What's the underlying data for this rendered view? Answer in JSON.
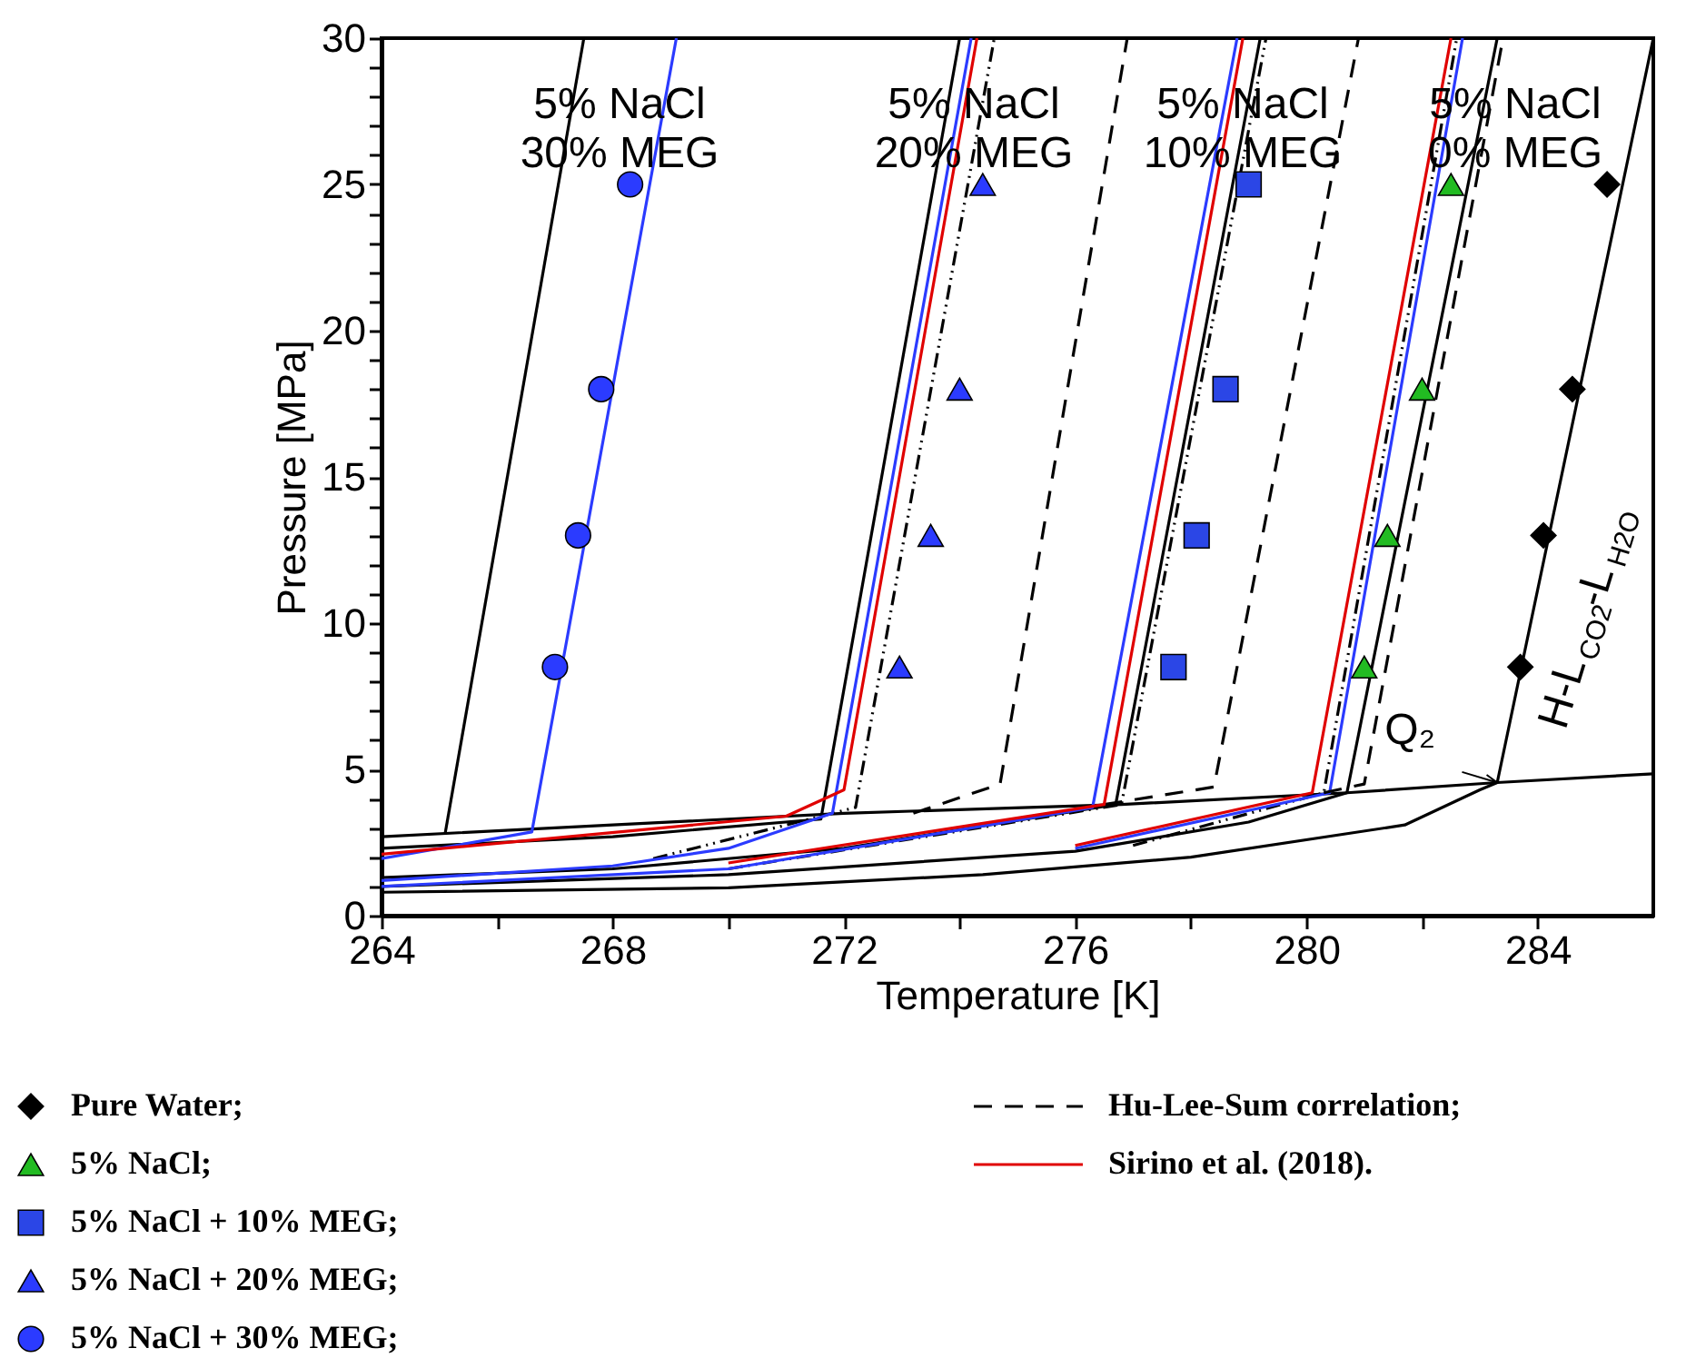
{
  "chart_data": {
    "type": "line",
    "xlabel": "Temperature [K]",
    "ylabel": "Pressure [MPa]",
    "xlim": [
      264,
      286
    ],
    "xticks": [
      264,
      {
        "value": 266,
        "label": null
      },
      268,
      {
        "value": 270,
        "label": null
      },
      272,
      {
        "value": 274,
        "label": null
      },
      276,
      {
        "value": 278,
        "label": null
      },
      280,
      {
        "value": 282,
        "label": null
      },
      284
    ],
    "ylim": [
      0,
      30
    ],
    "yticks": [
      0,
      {
        "value": 1,
        "label": null
      },
      {
        "value": 2,
        "label": null
      },
      {
        "value": 3,
        "label": null
      },
      {
        "value": 4,
        "label": null
      },
      5,
      {
        "value": 6,
        "label": null
      },
      {
        "value": 7,
        "label": null
      },
      {
        "value": 8,
        "label": null
      },
      {
        "value": 9,
        "label": null
      },
      10,
      {
        "value": 11,
        "label": null
      },
      {
        "value": 12,
        "label": null
      },
      {
        "value": 13,
        "label": null
      },
      {
        "value": 14,
        "label": null
      },
      15,
      {
        "value": 16,
        "label": null
      },
      {
        "value": 17,
        "label": null
      },
      {
        "value": 18,
        "label": null
      },
      {
        "value": 19,
        "label": null
      },
      20,
      {
        "value": 21,
        "label": null
      },
      {
        "value": 22,
        "label": null
      },
      {
        "value": 23,
        "label": null
      },
      {
        "value": 24,
        "label": null
      },
      25,
      {
        "value": 26,
        "label": null
      },
      {
        "value": 27,
        "label": null
      },
      {
        "value": 28,
        "label": null
      },
      {
        "value": 29,
        "label": null
      },
      30
    ],
    "grid": false,
    "legend": "bottom",
    "series": [
      {
        "color": "#000000",
        "line_style": "solid",
        "x": [
          264,
          268,
          272,
          276.8,
          280.7,
          283.3,
          286
        ],
        "values": [
          2.7,
          3.1,
          3.5,
          3.8,
          4.2,
          4.55,
          4.85
        ]
      },
      {
        "color": "#000000",
        "line_style": "solid",
        "x": [
          264,
          270,
          274.4,
          278,
          281.7,
          283.0,
          283.3,
          286.0
        ],
        "values": [
          0.8,
          0.95,
          1.4,
          2.0,
          3.1,
          4.3,
          4.55,
          30
        ]
      },
      {
        "color": "#000000",
        "line_style": "solid",
        "x": [
          264,
          270,
          276,
          279,
          280.7,
          283.3
        ],
        "values": [
          1.0,
          1.4,
          2.2,
          3.2,
          4.2,
          30
        ]
      },
      {
        "color": "#000000",
        "line_style": "solid",
        "x": [
          264,
          268,
          272,
          276.7,
          279.2
        ],
        "values": [
          1.3,
          1.6,
          2.3,
          3.8,
          30
        ]
      },
      {
        "color": "#000000",
        "line_style": "solid",
        "x": [
          264,
          268,
          271.6,
          274.0
        ],
        "values": [
          2.3,
          2.7,
          3.3,
          30
        ]
      },
      {
        "color": "#000000",
        "line_style": "solid",
        "x": [
          265.1,
          267.5
        ],
        "values": [
          2.8,
          30
        ]
      },
      {
        "color": "#000000",
        "line_style": "dotted",
        "x": [
          268.7,
          272.2,
          274.6
        ],
        "values": [
          1.95,
          3.7,
          30
        ]
      },
      {
        "color": "#000000",
        "line_style": "dotted",
        "x": [
          270,
          276.8,
          279.3
        ],
        "values": [
          1.6,
          3.8,
          30
        ]
      },
      {
        "color": "#000000",
        "line_style": "dotted",
        "x": [
          277,
          280.3,
          282.6
        ],
        "values": [
          2.4,
          4.2,
          30
        ]
      },
      {
        "color": "#2b3bff",
        "line_style": "solid",
        "x": [
          264,
          266.6,
          269.1
        ],
        "values": [
          1.95,
          2.86,
          30
        ]
      },
      {
        "color": "#2b3bff",
        "line_style": "solid",
        "x": [
          264,
          268,
          270,
          271.8,
          274.2
        ],
        "values": [
          1.2,
          1.7,
          2.3,
          3.5,
          30
        ]
      },
      {
        "color": "#2b3bff",
        "line_style": "solid",
        "x": [
          264,
          270,
          276.3,
          278.8
        ],
        "values": [
          1.0,
          1.6,
          3.7,
          30
        ]
      },
      {
        "color": "#2b3bff",
        "line_style": "solid",
        "x": [
          276,
          280.4,
          282.7
        ],
        "values": [
          2.3,
          4.2,
          30
        ]
      },
      {
        "name": "Hu-Lee-Sum correlation;",
        "color": "#000000",
        "line_style": "dashed",
        "x": [
          273.2,
          274.7,
          276.9
        ],
        "values": [
          3.5,
          4.5,
          30
        ]
      },
      {
        "color": "#000000",
        "line_style": "dashed",
        "x": [
          276.5,
          278.4,
          280.9
        ],
        "values": [
          3.8,
          4.4,
          30
        ]
      },
      {
        "color": "#000000",
        "line_style": "dashed",
        "x": [
          280.3,
          281.0,
          283.4
        ],
        "values": [
          4.2,
          4.5,
          30
        ]
      },
      {
        "name": "Sirino et al. (2018).",
        "color": "#e00000",
        "line_style": "solid",
        "x": [
          264,
          271.0,
          272.0,
          274.3
        ],
        "values": [
          2.1,
          3.4,
          4.3,
          30
        ]
      },
      {
        "color": "#e00000",
        "line_style": "solid",
        "x": [
          270,
          276.5,
          278.9
        ],
        "values": [
          1.8,
          3.8,
          30
        ]
      },
      {
        "color": "#e00000",
        "line_style": "solid",
        "x": [
          276,
          280.1,
          282.5
        ],
        "values": [
          2.4,
          4.2,
          30
        ]
      },
      {
        "type": "scatter",
        "name": "Pure Water;",
        "color": "#000000",
        "marker": "diamond",
        "x": [
          285.2,
          284.6,
          284.1,
          283.7
        ],
        "values": [
          25,
          18,
          13,
          8.5
        ]
      },
      {
        "type": "scatter",
        "name": "5% NaCl;",
        "color": "#22bb22",
        "marker": "triangle",
        "x": [
          282.5,
          282.0,
          281.4,
          281.0
        ],
        "values": [
          25,
          18,
          13,
          8.5
        ]
      },
      {
        "type": "scatter",
        "name": "5% NaCl + 10% MEG;",
        "color": "#2b46e6",
        "marker": "square",
        "x": [
          279.0,
          278.6,
          278.1,
          277.7
        ],
        "values": [
          25,
          18,
          13,
          8.5
        ]
      },
      {
        "type": "scatter",
        "name": "5% NaCl + 20% MEG;",
        "color": "#2b3bff",
        "marker": "triangle",
        "x": [
          274.4,
          274.0,
          273.5,
          272.96
        ],
        "values": [
          25,
          18,
          13,
          8.5
        ]
      },
      {
        "type": "scatter",
        "name": "5% NaCl + 30% MEG;",
        "color": "#2b3bff",
        "marker": "circle",
        "x": [
          268.3,
          267.8,
          267.4,
          267.0
        ],
        "values": [
          25,
          18,
          13,
          8.5
        ]
      }
    ],
    "annotations": [
      "5% NaCl\n30% MEG",
      "5% NaCl\n20% MEG",
      "5% NaCl\n10% MEG",
      "5% NaCl\n0% MEG",
      {
        "text": "Q₂",
        "x": 283.3,
        "y": 4.55
      },
      "H-L$_{CO2}$-L$_{H2O}$"
    ]
  }
}
